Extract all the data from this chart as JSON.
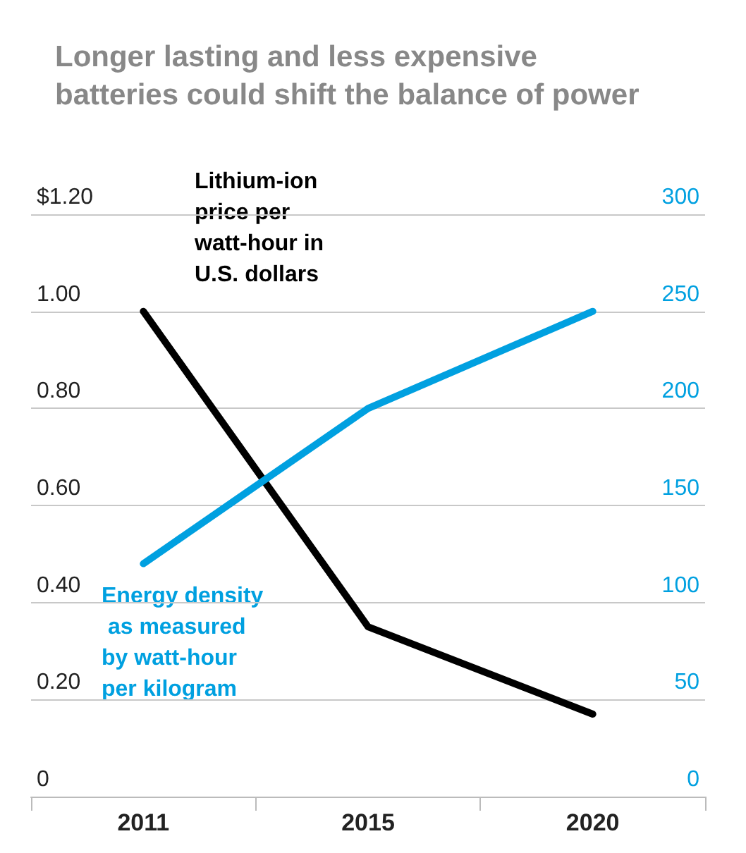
{
  "chart_data": {
    "type": "line",
    "title": "Longer lasting and less expensive batteries could shift the balance of power",
    "categories": [
      "2011",
      "2015",
      "2020"
    ],
    "series": [
      {
        "name": "Lithium-ion price per watt-hour in U.S. dollars",
        "color": "#000000",
        "values": [
          1.0,
          0.35,
          0.17
        ]
      },
      {
        "name": "Energy density as measured by watt-hour per kilogram",
        "color": "#00a0e0",
        "values": [
          120,
          200,
          250
        ],
        "axis": "y2"
      }
    ],
    "ylim": [
      0,
      1.2
    ],
    "yticks": [
      {
        "value": 0,
        "label": "0"
      },
      {
        "value": 0.2,
        "label": "0.20"
      },
      {
        "value": 0.4,
        "label": "0.40"
      },
      {
        "value": 0.6,
        "label": "0.60"
      },
      {
        "value": 0.8,
        "label": "0.80"
      },
      {
        "value": 1.0,
        "label": "1.00"
      },
      {
        "value": 1.2,
        "label": "$1.20"
      }
    ],
    "y2lim": [
      0,
      300
    ],
    "y2ticks": [
      0,
      50,
      100,
      150,
      200,
      250,
      300
    ],
    "grid": "y",
    "legend": false,
    "marker": "none",
    "line_style": "solid"
  }
}
